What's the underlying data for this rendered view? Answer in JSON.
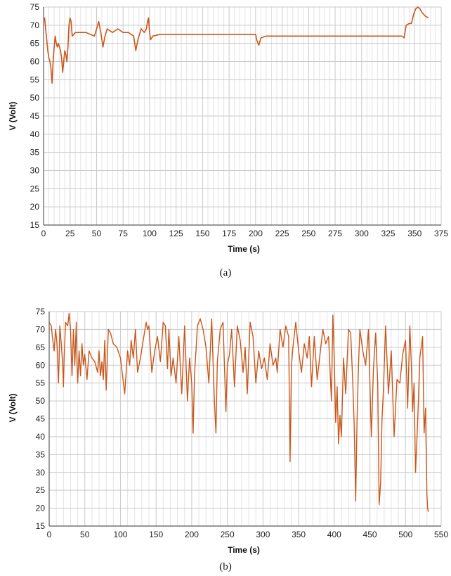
{
  "chart_data": [
    {
      "type": "line",
      "caption": "(a)",
      "xlabel": "Time (s)",
      "ylabel": "V (Volt)",
      "xlim": [
        0,
        375
      ],
      "ylim": [
        15,
        75
      ],
      "xticks": [
        0,
        25,
        50,
        75,
        100,
        125,
        150,
        175,
        200,
        225,
        250,
        275,
        300,
        325,
        350,
        375
      ],
      "yticks": [
        15,
        20,
        25,
        30,
        35,
        40,
        45,
        50,
        55,
        60,
        65,
        70,
        75
      ],
      "grid": true,
      "color": "#c8581c",
      "series": [
        {
          "x": [
            0,
            1,
            2,
            3,
            4,
            5,
            6,
            7,
            8,
            9,
            10,
            11,
            12,
            13,
            14,
            15,
            16,
            17,
            18,
            19,
            20,
            21,
            22,
            23,
            24,
            25,
            26,
            27,
            30,
            40,
            48,
            50,
            52,
            54,
            56,
            58,
            60,
            65,
            70,
            75,
            80,
            85,
            87,
            89,
            92,
            95,
            97,
            98,
            99,
            100,
            101,
            103,
            110,
            125,
            150,
            175,
            200,
            201,
            203,
            205,
            210,
            225,
            250,
            275,
            300,
            325,
            335,
            338,
            340,
            342,
            345,
            347,
            349,
            351,
            353,
            355,
            357,
            360,
            363
          ],
          "y": [
            72,
            72,
            69,
            66,
            63,
            61,
            60,
            58,
            54,
            60,
            64,
            67,
            65,
            64,
            65,
            64,
            63,
            61,
            57,
            60,
            63,
            62,
            60,
            64,
            70,
            72,
            71,
            67,
            68,
            68,
            67,
            69,
            71,
            68,
            64,
            67,
            69,
            68,
            69,
            68,
            68,
            67,
            63,
            66,
            69,
            68,
            69,
            71,
            72,
            68,
            66,
            67,
            67.5,
            67.5,
            67.5,
            67.5,
            67.5,
            66,
            64.5,
            66.5,
            67,
            67,
            67,
            67,
            67,
            67,
            67,
            67,
            66.5,
            70,
            70.5,
            70.5,
            73,
            74.5,
            75,
            74.5,
            73.5,
            72.5,
            72
          ]
        }
      ]
    },
    {
      "type": "line",
      "caption": "(b)",
      "xlabel": "Time (s)",
      "ylabel": "V (Volt)",
      "xlim": [
        0,
        550
      ],
      "ylim": [
        15,
        75
      ],
      "xticks": [
        0,
        50,
        100,
        150,
        200,
        250,
        300,
        350,
        400,
        450,
        500,
        550
      ],
      "yticks": [
        15,
        20,
        25,
        30,
        35,
        40,
        45,
        50,
        55,
        60,
        65,
        70,
        75
      ],
      "grid": true,
      "color": "#c8581c",
      "series": [
        {
          "x": [
            0,
            3,
            5,
            7,
            9,
            11,
            13,
            14,
            15,
            17,
            19,
            20,
            21,
            23,
            26,
            28,
            30,
            32,
            34,
            36,
            38,
            39,
            40,
            42,
            44,
            46,
            48,
            50,
            53,
            56,
            60,
            64,
            68,
            70,
            72,
            74,
            76,
            78,
            80,
            83,
            86,
            90,
            95,
            100,
            103,
            106,
            110,
            113,
            115,
            118,
            121,
            124,
            128,
            132,
            136,
            138,
            140,
            144,
            148,
            152,
            156,
            160,
            163,
            166,
            168,
            171,
            174,
            178,
            182,
            186,
            190,
            194,
            197,
            200,
            202,
            204,
            206,
            208,
            212,
            216,
            220,
            224,
            228,
            230,
            232,
            234,
            236,
            240,
            244,
            248,
            250,
            253,
            256,
            260,
            264,
            268,
            272,
            275,
            278,
            282,
            286,
            290,
            294,
            298,
            302,
            306,
            310,
            314,
            318,
            320,
            324,
            328,
            332,
            336,
            338,
            340,
            342,
            346,
            350,
            354,
            358,
            362,
            365,
            368,
            372,
            376,
            380,
            384,
            388,
            392,
            396,
            398,
            400,
            402,
            404,
            406,
            408,
            410,
            413,
            416,
            420,
            423,
            426,
            428,
            430,
            432,
            434,
            436,
            440,
            444,
            448,
            452,
            455,
            458,
            461,
            463,
            465,
            467,
            469,
            472,
            476,
            480,
            484,
            488,
            492,
            496,
            500,
            503,
            506,
            508,
            510,
            512,
            514,
            517,
            520,
            522,
            524,
            526,
            528,
            530,
            531,
            532
          ],
          "y": [
            72,
            71,
            67,
            64,
            70,
            66,
            55,
            62,
            71,
            66,
            60,
            54,
            62,
            72,
            71,
            74.5,
            70,
            57,
            70,
            60,
            72,
            61,
            55,
            64,
            57,
            66,
            60,
            63,
            56,
            64,
            62,
            61,
            58,
            64,
            57,
            61,
            56,
            67,
            53,
            70,
            69,
            66,
            65,
            62,
            57,
            52,
            64,
            60,
            67,
            62,
            70,
            58,
            62,
            67,
            72,
            70,
            71,
            58,
            64,
            68,
            61,
            72,
            71,
            59,
            70,
            57,
            62,
            55,
            68,
            52,
            71,
            50,
            62,
            55,
            41,
            58,
            64,
            71,
            73,
            70,
            65,
            55,
            73,
            61,
            49,
            41,
            61,
            70,
            72,
            47,
            60,
            63,
            70,
            54,
            71,
            67,
            58,
            65,
            52,
            72,
            68,
            55,
            64,
            59,
            62,
            56,
            66,
            60,
            62,
            58,
            70,
            65,
            71,
            68,
            33,
            60,
            65,
            72,
            64,
            58,
            66,
            62,
            68,
            54,
            68,
            56,
            63,
            70,
            66,
            68,
            50,
            74,
            62,
            44,
            54,
            38,
            46,
            40,
            62,
            52,
            70,
            69,
            55,
            43,
            22,
            45,
            60,
            70,
            64,
            60,
            70,
            40,
            59,
            69,
            55,
            21,
            27,
            45,
            53,
            71,
            52,
            64,
            40,
            56,
            55,
            63,
            67,
            48,
            71,
            61,
            47,
            55,
            30,
            44,
            62,
            65,
            68,
            41,
            48,
            24,
            20,
            19
          ]
        }
      ]
    }
  ]
}
